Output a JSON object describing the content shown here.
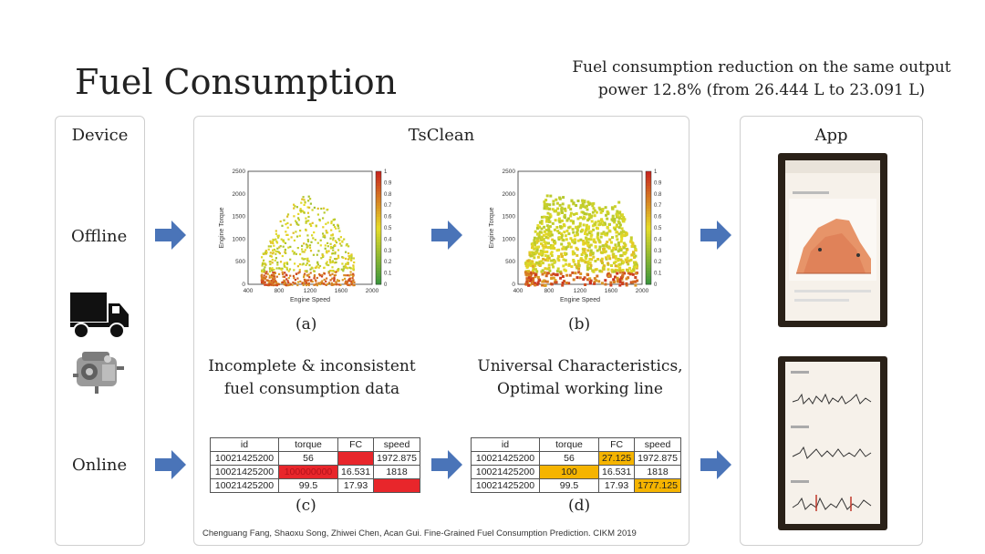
{
  "title": "Fuel Consumption",
  "subtitle": "Fuel consumption reduction on the same output power 12.8% (from 26.444 L to 23.091 L)",
  "panels": {
    "device": "Device",
    "tsclean": "TsClean",
    "app": "App"
  },
  "rows": {
    "offline": "Offline",
    "online": "Online"
  },
  "plots": {
    "a_caption": "(a)",
    "b_caption": "(b)",
    "xlabel": "Engine Speed",
    "ylabel": "Engine Torque",
    "xticks": [
      "400",
      "800",
      "1200",
      "1600",
      "2000"
    ],
    "yticks": [
      "0",
      "500",
      "1000",
      "1500",
      "2000",
      "2500"
    ],
    "cbticks": [
      "0",
      "0.1",
      "0.2",
      "0.3",
      "0.4",
      "0.5",
      "0.6",
      "0.7",
      "0.8",
      "0.9",
      "1"
    ]
  },
  "descriptions": {
    "left": "Incomplete & inconsistent fuel consumption data",
    "right": "Universal Characteristics, Optimal working line"
  },
  "tables": {
    "headers": [
      "id",
      "torque",
      "FC",
      "speed"
    ],
    "c_caption": "(c)",
    "d_caption": "(d)",
    "c_rows": [
      [
        "10021425200",
        "56",
        "",
        "1972.875"
      ],
      [
        "10021425200",
        "100000000",
        "16.531",
        "1818"
      ],
      [
        "10021425200",
        "99.5",
        "17.93",
        ""
      ]
    ],
    "d_rows": [
      [
        "10021425200",
        "56",
        "27.125",
        "1972.875"
      ],
      [
        "10021425200",
        "100",
        "16.531",
        "1818"
      ],
      [
        "10021425200",
        "99.5",
        "17.93",
        "1777.125"
      ]
    ]
  },
  "citation": "Chenguang Fang, Shaoxu Song, Zhiwei Chen, Acan Gui. Fine-Grained Fuel Consumption Prediction. CIKM 2019",
  "colors": {
    "arrow": "#4a74b8",
    "highlight_red": "#e8262b",
    "highlight_orange": "#f5b400"
  },
  "icons": [
    "truck-icon",
    "engine-icon",
    "phone-screenshot-icon"
  ]
}
